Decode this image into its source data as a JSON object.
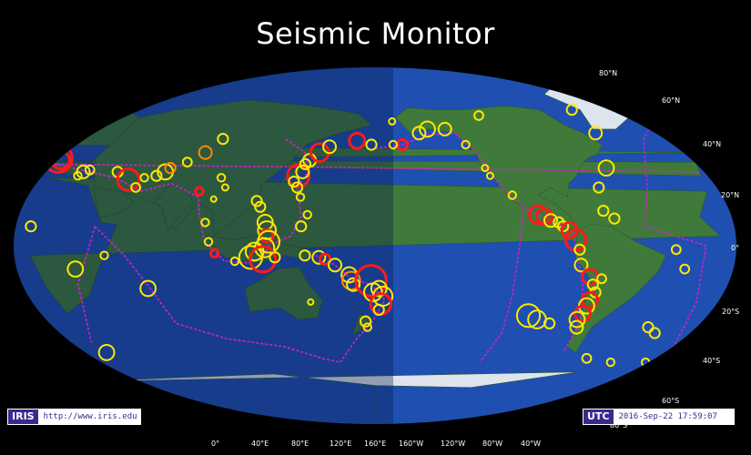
{
  "title": "Seismic Monitor",
  "iris": {
    "logo": "IRIS",
    "url": "http://www.iris.edu"
  },
  "utc": {
    "label": "UTC",
    "time": "2016-Sep-22 17:59:07"
  },
  "lat_labels": [
    "80°N",
    "60°N",
    "40°N",
    "20°N",
    "0°",
    "20°S",
    "40°S",
    "60°S",
    "80°S"
  ],
  "lon_labels": [
    "0°",
    "40°E",
    "80°E",
    "120°E",
    "160°E",
    "160°W",
    "120°W",
    "80°W",
    "40°W"
  ],
  "colors": {
    "ocean": "#1f4fb0",
    "deep_ocean": "#163c8f",
    "land": "#3f7a3a",
    "plate_boundary": "#d020d0",
    "quake_recent": "#ff1a1a",
    "quake_day": "#ff8a00",
    "quake_week": "#ffe800",
    "night_overlay": "#0a1a4a"
  },
  "earthquakes": [
    {
      "lon": 10,
      "lat": 45,
      "age": "recent",
      "mag": 6.0
    },
    {
      "lon": 12,
      "lat": 44,
      "age": "recent",
      "mag": 5.2
    },
    {
      "lon": 27,
      "lat": 38,
      "age": "week",
      "mag": 4.8
    },
    {
      "lon": 25,
      "lat": 36,
      "age": "week",
      "mag": 4.4
    },
    {
      "lon": 30,
      "lat": 39,
      "age": "week",
      "mag": 4.5
    },
    {
      "lon": 45,
      "lat": 38,
      "age": "week",
      "mag": 4.6
    },
    {
      "lon": 52,
      "lat": 34,
      "age": "recent",
      "mag": 5.5
    },
    {
      "lon": 57,
      "lat": 30,
      "age": "week",
      "mag": 4.5
    },
    {
      "lon": 60,
      "lat": 35,
      "age": "week",
      "mag": 4.4
    },
    {
      "lon": 66,
      "lat": 36,
      "age": "week",
      "mag": 4.6
    },
    {
      "lon": 70,
      "lat": 38,
      "age": "week",
      "mag": 5.0
    },
    {
      "lon": 72,
      "lat": 40,
      "age": "day",
      "mag": 4.6
    },
    {
      "lon": 80,
      "lat": 43,
      "age": "week",
      "mag": 4.5
    },
    {
      "lon": 88,
      "lat": 48,
      "age": "day",
      "mag": 4.8
    },
    {
      "lon": 90,
      "lat": 28,
      "age": "recent",
      "mag": 4.4
    },
    {
      "lon": 100,
      "lat": 35,
      "age": "week",
      "mag": 4.4
    },
    {
      "lon": 103,
      "lat": 30,
      "age": "week",
      "mag": 4.3
    },
    {
      "lon": 98,
      "lat": 24,
      "age": "week",
      "mag": 4.2
    },
    {
      "lon": 95,
      "lat": 55,
      "age": "week",
      "mag": 4.6
    },
    {
      "lon": 8,
      "lat": 10,
      "age": "week",
      "mag": 4.6
    },
    {
      "lon": 30,
      "lat": -12,
      "age": "week",
      "mag": 5.0
    },
    {
      "lon": 45,
      "lat": -5,
      "age": "week",
      "mag": 4.4
    },
    {
      "lon": 65,
      "lat": -22,
      "age": "week",
      "mag": 5.0
    },
    {
      "lon": 30,
      "lat": -55,
      "age": "week",
      "mag": 5.0
    },
    {
      "lon": 120,
      "lat": 23,
      "age": "week",
      "mag": 4.6
    },
    {
      "lon": 122,
      "lat": 20,
      "age": "week",
      "mag": 4.6
    },
    {
      "lon": 125,
      "lat": 12,
      "age": "week",
      "mag": 5.0
    },
    {
      "lon": 126,
      "lat": 8,
      "age": "week",
      "mag": 5.2
    },
    {
      "lon": 126,
      "lat": 5,
      "age": "recent",
      "mag": 4.8
    },
    {
      "lon": 127,
      "lat": 2,
      "age": "week",
      "mag": 5.5
    },
    {
      "lon": 125,
      "lat": -1,
      "age": "week",
      "mag": 5.3
    },
    {
      "lon": 120,
      "lat": -3,
      "age": "week",
      "mag": 5.2
    },
    {
      "lon": 118,
      "lat": -6,
      "age": "week",
      "mag": 5.6
    },
    {
      "lon": 124,
      "lat": -7,
      "age": "recent",
      "mag": 5.8
    },
    {
      "lon": 130,
      "lat": -6,
      "age": "week",
      "mag": 4.6
    },
    {
      "lon": 110,
      "lat": -8,
      "age": "week",
      "mag": 4.4
    },
    {
      "lon": 100,
      "lat": -4,
      "age": "recent",
      "mag": 4.4
    },
    {
      "lon": 97,
      "lat": 2,
      "age": "week",
      "mag": 4.4
    },
    {
      "lon": 95,
      "lat": 12,
      "age": "week",
      "mag": 4.4
    },
    {
      "lon": 140,
      "lat": 36,
      "age": "recent",
      "mag": 5.5
    },
    {
      "lon": 142,
      "lat": 38,
      "age": "week",
      "mag": 4.8
    },
    {
      "lon": 143,
      "lat": 42,
      "age": "week",
      "mag": 4.6
    },
    {
      "lon": 145,
      "lat": 44,
      "age": "week",
      "mag": 4.8
    },
    {
      "lon": 150,
      "lat": 48,
      "age": "recent",
      "mag": 5.2
    },
    {
      "lon": 155,
      "lat": 51,
      "age": "week",
      "mag": 4.8
    },
    {
      "lon": 140,
      "lat": 30,
      "age": "week",
      "mag": 4.6
    },
    {
      "lon": 142,
      "lat": 25,
      "age": "week",
      "mag": 4.4
    },
    {
      "lon": 138,
      "lat": 33,
      "age": "week",
      "mag": 4.6
    },
    {
      "lon": 146,
      "lat": 16,
      "age": "week",
      "mag": 4.4
    },
    {
      "lon": 143,
      "lat": 10,
      "age": "week",
      "mag": 4.6
    },
    {
      "lon": 170,
      "lat": 54,
      "age": "recent",
      "mag": 5.0
    },
    {
      "lon": 178,
      "lat": 52,
      "age": "week",
      "mag": 4.6
    },
    {
      "lon": 145,
      "lat": -5,
      "age": "week",
      "mag": 4.6
    },
    {
      "lon": 152,
      "lat": -6,
      "age": "week",
      "mag": 4.8
    },
    {
      "lon": 155,
      "lat": -7,
      "age": "recent",
      "mag": 4.6
    },
    {
      "lon": 160,
      "lat": -10,
      "age": "week",
      "mag": 4.8
    },
    {
      "lon": 167,
      "lat": -15,
      "age": "week",
      "mag": 5.0
    },
    {
      "lon": 168,
      "lat": -18,
      "age": "day",
      "mag": 5.2
    },
    {
      "lon": 169,
      "lat": -20,
      "age": "week",
      "mag": 4.8
    },
    {
      "lon": 178,
      "lat": -18,
      "age": "recent",
      "mag": 6.2
    },
    {
      "lon": -178,
      "lat": -22,
      "age": "week",
      "mag": 5.0
    },
    {
      "lon": -176,
      "lat": -26,
      "age": "week",
      "mag": 5.3
    },
    {
      "lon": 179,
      "lat": -24,
      "age": "week",
      "mag": 5.2
    },
    {
      "lon": -177,
      "lat": -30,
      "age": "recent",
      "mag": 5.4
    },
    {
      "lon": -178,
      "lat": -33,
      "age": "week",
      "mag": 4.6
    },
    {
      "lon": 175,
      "lat": -39,
      "age": "week",
      "mag": 4.6
    },
    {
      "lon": 176,
      "lat": -42,
      "age": "week",
      "mag": 4.4
    },
    {
      "lon": 147,
      "lat": -29,
      "age": "week",
      "mag": 4.2
    },
    {
      "lon": -155,
      "lat": 58,
      "age": "week",
      "mag": 4.8
    },
    {
      "lon": -150,
      "lat": 60,
      "age": "week",
      "mag": 5.0
    },
    {
      "lon": -165,
      "lat": 52,
      "age": "recent",
      "mag": 4.6
    },
    {
      "lon": -170,
      "lat": 52,
      "age": "week",
      "mag": 4.4
    },
    {
      "lon": -140,
      "lat": 60,
      "age": "week",
      "mag": 4.8
    },
    {
      "lon": -130,
      "lat": 52,
      "age": "week",
      "mag": 4.4
    },
    {
      "lon": -120,
      "lat": 36,
      "age": "week",
      "mag": 4.3
    },
    {
      "lon": -122,
      "lat": 40,
      "age": "week",
      "mag": 4.3
    },
    {
      "lon": -110,
      "lat": 26,
      "age": "week",
      "mag": 4.4
    },
    {
      "lon": -98,
      "lat": 16,
      "age": "recent",
      "mag": 5.2
    },
    {
      "lon": -95,
      "lat": 15,
      "age": "recent",
      "mag": 5.0
    },
    {
      "lon": -92,
      "lat": 13,
      "age": "week",
      "mag": 4.8
    },
    {
      "lon": -88,
      "lat": 12,
      "age": "week",
      "mag": 4.6
    },
    {
      "lon": -86,
      "lat": 10,
      "age": "week",
      "mag": 4.6
    },
    {
      "lon": -83,
      "lat": 8,
      "age": "recent",
      "mag": 5.0
    },
    {
      "lon": -80,
      "lat": 3,
      "age": "recent",
      "mag": 5.4
    },
    {
      "lon": -78,
      "lat": -2,
      "age": "week",
      "mag": 4.6
    },
    {
      "lon": -77,
      "lat": -10,
      "age": "week",
      "mag": 4.8
    },
    {
      "lon": -72,
      "lat": -16,
      "age": "recent",
      "mag": 5.0
    },
    {
      "lon": -70,
      "lat": -20,
      "age": "week",
      "mag": 4.6
    },
    {
      "lon": -68,
      "lat": -24,
      "age": "week",
      "mag": 4.6
    },
    {
      "lon": -70,
      "lat": -28,
      "age": "recent",
      "mag": 5.0
    },
    {
      "lon": -71,
      "lat": -31,
      "age": "week",
      "mag": 5.0
    },
    {
      "lon": -72,
      "lat": -35,
      "age": "recent",
      "mag": 5.0
    },
    {
      "lon": -74,
      "lat": -38,
      "age": "week",
      "mag": 5.0
    },
    {
      "lon": -73,
      "lat": -42,
      "age": "week",
      "mag": 4.8
    },
    {
      "lon": -66,
      "lat": -17,
      "age": "week",
      "mag": 4.5
    },
    {
      "lon": -60,
      "lat": 14,
      "age": "week",
      "mag": 4.6
    },
    {
      "lon": -65,
      "lat": 18,
      "age": "week",
      "mag": 4.6
    },
    {
      "lon": -65,
      "lat": 30,
      "age": "week",
      "mag": 4.6
    },
    {
      "lon": -58,
      "lat": 40,
      "age": "week",
      "mag": 5.0
    },
    {
      "lon": -55,
      "lat": 58,
      "age": "week",
      "mag": 4.8
    },
    {
      "lon": -60,
      "lat": 70,
      "age": "week",
      "mag": 4.6
    },
    {
      "lon": -30,
      "lat": -2,
      "age": "week",
      "mag": 4.5
    },
    {
      "lon": -25,
      "lat": -12,
      "age": "week",
      "mag": 4.5
    },
    {
      "lon": -100,
      "lat": -36,
      "age": "week",
      "mag": 5.6
    },
    {
      "lon": -95,
      "lat": -38,
      "age": "week",
      "mag": 5.2
    },
    {
      "lon": -88,
      "lat": -40,
      "age": "week",
      "mag": 4.6
    },
    {
      "lon": -35,
      "lat": -42,
      "age": "week",
      "mag": 4.6
    },
    {
      "lon": -30,
      "lat": -45,
      "age": "week",
      "mag": 4.6
    },
    {
      "lon": -45,
      "lat": -60,
      "age": "week",
      "mag": 4.4
    },
    {
      "lon": -60,
      "lat": -58,
      "age": "week",
      "mag": 4.5
    },
    {
      "lon": -25,
      "lat": -60,
      "age": "week",
      "mag": 4.4
    },
    {
      "lon": -118,
      "lat": 67,
      "age": "week",
      "mag": 4.5
    },
    {
      "lon": -170,
      "lat": 64,
      "age": "week",
      "mag": 4.3
    }
  ]
}
